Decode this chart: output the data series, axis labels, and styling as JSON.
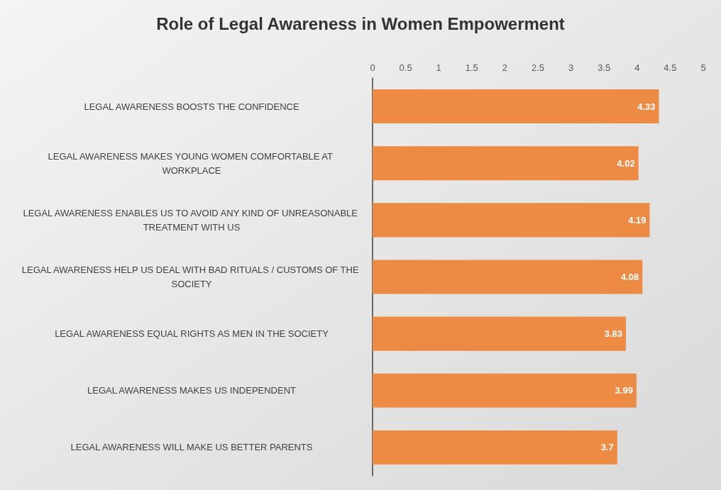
{
  "chart_data": {
    "type": "bar",
    "orientation": "horizontal",
    "title": "Role of Legal Awareness in Women Empowerment",
    "categories": [
      "LEGAL AWARENESS BOOSTS THE CONFIDENCE",
      "LEGAL AWARENESS MAKES YOUNG WOMEN COMFORTABLE AT WORKPLACE",
      "LEGAL AWARENESS ENABLES US TO AVOID ANY KIND OF UNREASONABLE TREATMENT WITH US",
      "LEGAL AWARENESS HELP US DEAL WITH BAD RITUALS / CUSTOMS OF THE SOCIETY",
      "LEGAL AWARENESS EQUAL RIGHTS AS MEN IN THE SOCIETY",
      "LEGAL AWARENESS MAKES US INDEPENDENT",
      "LEGAL AWARENESS WILL MAKE US BETTER PARENTS"
    ],
    "values": [
      4.33,
      4.02,
      4.19,
      4.08,
      3.83,
      3.99,
      3.7
    ],
    "color": "#ed8b45",
    "xlim": [
      0,
      5
    ],
    "xticks": [
      0,
      0.5,
      1,
      1.5,
      2,
      2.5,
      3,
      3.5,
      4,
      4.5,
      5
    ],
    "data_labels": true,
    "grid": false
  }
}
